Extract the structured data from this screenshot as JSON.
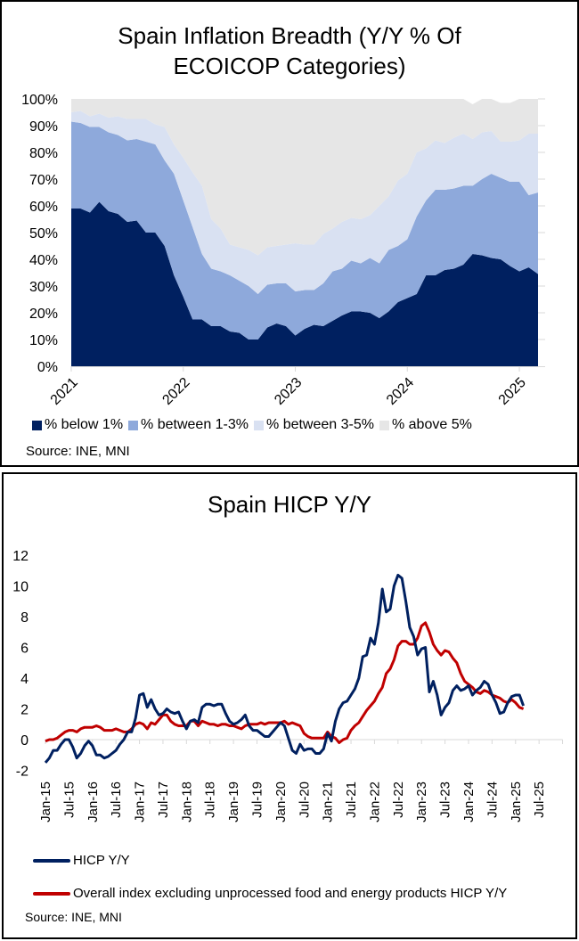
{
  "chart_data": [
    {
      "type": "area",
      "stacked": true,
      "title": "Spain Inflation Breadth (Y/Y % Of ECOICOP Categories)",
      "title_lines": [
        "Spain Inflation Breadth (Y/Y % Of",
        "ECOICOP Categories)"
      ],
      "x_start": "2021-01",
      "x_end": "2025-03",
      "x_frequency": "monthly",
      "x_tick_labels": [
        "2021",
        "2022",
        "2023",
        "2024",
        "2025"
      ],
      "y_tick_labels": [
        "0%",
        "10%",
        "20%",
        "30%",
        "40%",
        "50%",
        "60%",
        "70%",
        "80%",
        "90%",
        "100%"
      ],
      "ylim": [
        0,
        100
      ],
      "grid": false,
      "legend_position": "bottom",
      "series": [
        {
          "name": "% below 1%",
          "color": "#002060",
          "values": [
            59,
            59,
            57.5,
            61.5,
            58,
            57,
            54,
            54.5,
            50,
            50,
            45,
            34,
            26,
            17.5,
            17.5,
            15,
            15,
            13,
            12.5,
            10,
            10,
            14.5,
            16,
            15,
            11.5,
            14,
            15.5,
            15,
            17,
            19,
            20.5,
            20.5,
            20,
            18,
            20.5,
            24,
            25.5,
            27,
            34,
            34,
            36,
            36.5,
            38,
            42,
            41.5,
            40.5,
            40,
            37.5,
            35.5,
            37,
            34.5
          ]
        },
        {
          "name": "% between 1-3%",
          "color": "#8EA9DB",
          "values": [
            32.5,
            32,
            32,
            28,
            29.5,
            29.5,
            30.5,
            30.5,
            34,
            33,
            32,
            38,
            36,
            34.5,
            24.5,
            21.5,
            20.5,
            21,
            19.5,
            20,
            17,
            16,
            15,
            16,
            16.5,
            14.5,
            13,
            16,
            18.5,
            17.5,
            19,
            18,
            20.5,
            20.5,
            23,
            21,
            22,
            29,
            28,
            32,
            30,
            30,
            29.5,
            25.5,
            28.5,
            31.5,
            30.5,
            31.5,
            33.5,
            27,
            30.5
          ]
        },
        {
          "name": "% between 3-5%",
          "color": "#D9E1F2",
          "values": [
            3.5,
            4.5,
            4,
            5,
            5.5,
            7,
            8,
            7.5,
            8.5,
            7.5,
            12.5,
            11,
            16,
            20.5,
            25.5,
            18.5,
            16,
            11.5,
            12.5,
            13.5,
            14.5,
            14,
            14,
            14.5,
            18,
            17,
            17,
            18.5,
            16,
            17.5,
            16,
            16.5,
            16,
            21.5,
            20,
            24.5,
            24.5,
            24,
            19.5,
            18.5,
            17.5,
            19,
            19.5,
            17.5,
            17.5,
            16,
            13.5,
            15,
            15.5,
            23,
            22
          ]
        },
        {
          "name": "% above 5%",
          "color": "#E6E6E6",
          "values": [
            5,
            4.5,
            6.5,
            5.5,
            7,
            6.5,
            7.5,
            7.5,
            7.5,
            9.5,
            10.5,
            17,
            22,
            27.5,
            32.5,
            45,
            48.5,
            54.5,
            55.5,
            56.5,
            58.5,
            55.5,
            55,
            54.5,
            54,
            54.5,
            54.5,
            50.5,
            48.5,
            46,
            44.5,
            45,
            43.5,
            40,
            36.5,
            30.5,
            28,
            20,
            18.5,
            15.5,
            16.5,
            14.5,
            13,
            13,
            12.5,
            12,
            14.5,
            14.5,
            15.5,
            13,
            13
          ]
        }
      ],
      "source": "Source: INE, MNI"
    },
    {
      "type": "line",
      "title": "Spain HICP Y/Y",
      "x_start": "2015-01",
      "x_end": "2025-03",
      "x_frequency": "monthly",
      "x_tick_labels": [
        "Jan-15",
        "Jul-15",
        "Jan-16",
        "Jul-16",
        "Jan-17",
        "Jul-17",
        "Jan-18",
        "Jul-18",
        "Jan-19",
        "Jul-19",
        "Jan-20",
        "Jul-20",
        "Jan-21",
        "Jul-21",
        "Jan-22",
        "Jul-22",
        "Jan-23",
        "Jul-23",
        "Jan-24",
        "Jul-24",
        "Jan-25",
        "Jul-25"
      ],
      "y_tick_labels": [
        "-2",
        "0",
        "2",
        "4",
        "6",
        "8",
        "10",
        "12"
      ],
      "ylim": [
        -2,
        12
      ],
      "grid": false,
      "legend_position": "bottom",
      "series": [
        {
          "name": "HICP Y/Y",
          "color": "#002060",
          "values": [
            -1.5,
            -1.2,
            -0.7,
            -0.7,
            -0.3,
            0.0,
            0.0,
            -0.5,
            -1.2,
            -0.9,
            -0.4,
            -0.1,
            -0.4,
            -1.0,
            -1.0,
            -1.2,
            -1.1,
            -0.9,
            -0.7,
            -0.3,
            0.0,
            0.5,
            0.5,
            1.4,
            2.9,
            3.0,
            2.1,
            2.6,
            2.0,
            1.6,
            1.7,
            2.0,
            1.8,
            1.7,
            1.8,
            1.2,
            0.7,
            1.2,
            1.3,
            1.1,
            2.1,
            2.3,
            2.3,
            2.2,
            2.3,
            2.3,
            1.7,
            1.2,
            1.0,
            1.1,
            1.3,
            1.6,
            0.9,
            0.6,
            0.6,
            0.4,
            0.2,
            0.2,
            0.5,
            0.8,
            1.1,
            0.9,
            0.1,
            -0.7,
            -0.9,
            -0.3,
            -0.7,
            -0.6,
            -0.6,
            -0.9,
            -0.9,
            -0.6,
            0.4,
            -0.1,
            1.2,
            2.0,
            2.4,
            2.5,
            2.9,
            3.3,
            4.0,
            5.4,
            5.5,
            6.6,
            6.2,
            7.6,
            9.8,
            8.3,
            8.5,
            10.0,
            10.7,
            10.5,
            9.0,
            7.3,
            6.7,
            5.5,
            5.9,
            6.0,
            3.1,
            3.8,
            2.9,
            1.6,
            2.1,
            2.4,
            3.2,
            3.5,
            3.2,
            3.3,
            3.5,
            2.9,
            3.2,
            3.4,
            3.8,
            3.6,
            2.9,
            2.4,
            1.7,
            1.8,
            2.4,
            2.8,
            2.9,
            2.9,
            2.2
          ]
        },
        {
          "name": "Overall index excluding unprocessed food and energy products HICP Y/Y",
          "color": "#C00000",
          "values": [
            -0.1,
            0.0,
            0.0,
            0.1,
            0.3,
            0.5,
            0.6,
            0.6,
            0.5,
            0.7,
            0.8,
            0.8,
            0.8,
            0.9,
            0.8,
            0.6,
            0.6,
            0.6,
            0.7,
            0.6,
            0.5,
            0.5,
            0.7,
            1.0,
            1.1,
            1.0,
            0.7,
            1.1,
            1.0,
            1.3,
            1.6,
            1.6,
            1.2,
            1.0,
            0.9,
            0.9,
            0.9,
            1.2,
            1.2,
            0.9,
            1.2,
            1.1,
            1.0,
            1.0,
            0.9,
            1.0,
            1.0,
            0.9,
            0.9,
            0.8,
            0.7,
            0.9,
            1.0,
            1.0,
            1.0,
            1.1,
            1.0,
            1.1,
            1.1,
            1.1,
            1.1,
            1.2,
            1.0,
            1.1,
            1.0,
            0.9,
            0.4,
            0.2,
            0.1,
            0.1,
            0.1,
            0.1,
            0.5,
            0.2,
            0.1,
            -0.2,
            0.0,
            0.1,
            0.6,
            0.9,
            1.1,
            1.5,
            1.9,
            2.2,
            2.5,
            3.0,
            3.4,
            4.3,
            4.6,
            5.2,
            6.1,
            6.4,
            6.4,
            6.2,
            6.2,
            6.6,
            7.4,
            7.6,
            7.0,
            6.2,
            5.8,
            5.5,
            5.8,
            5.7,
            5.3,
            5.0,
            4.3,
            3.8,
            3.6,
            3.4,
            3.1,
            3.0,
            3.2,
            3.1,
            2.9,
            2.8,
            2.7,
            2.5,
            2.4,
            2.6,
            2.4,
            2.1,
            2.0
          ]
        }
      ],
      "source": "Source: INE, MNI"
    }
  ]
}
